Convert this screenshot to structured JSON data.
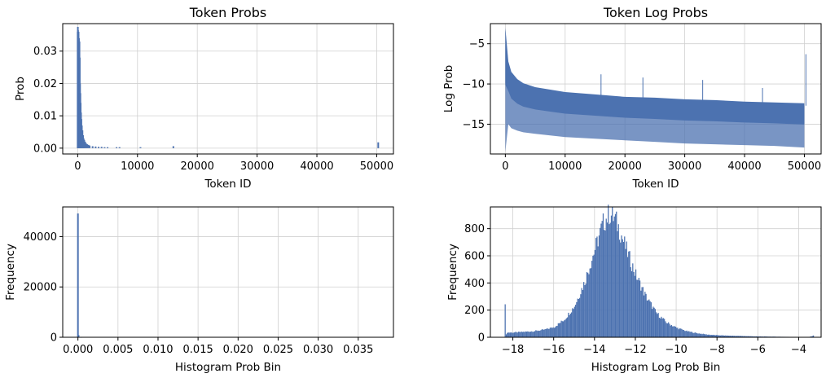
{
  "colors": {
    "series": "#4c72b0"
  },
  "chart_data": [
    {
      "id": "probs",
      "type": "bar",
      "title": "Token Probs",
      "xlabel": "Token ID",
      "ylabel": "Prob",
      "xlim": [
        -2500,
        52800
      ],
      "ylim": [
        -0.0018,
        0.0385
      ],
      "xticks": [
        0,
        10000,
        20000,
        30000,
        40000,
        50000
      ],
      "xtick_labels": [
        "0",
        "10000",
        "20000",
        "30000",
        "40000",
        "50000"
      ],
      "yticks": [
        0,
        0.01,
        0.02,
        0.03
      ],
      "ytick_labels": [
        "0.00",
        "0.01",
        "0.02",
        "0.03"
      ],
      "grid": true,
      "x": [
        0,
        30,
        60,
        90,
        120,
        150,
        180,
        220,
        260,
        300,
        350,
        400,
        450,
        500,
        560,
        620,
        700,
        800,
        900,
        1000,
        1100,
        1250,
        1400,
        1600,
        1800,
        2000,
        2500,
        3000,
        3500,
        4000,
        4500,
        5000,
        6500,
        7000,
        10500,
        16000,
        50256
      ],
      "y": [
        0.036,
        0.0375,
        0.0365,
        0.035,
        0.0355,
        0.036,
        0.033,
        0.034,
        0.031,
        0.033,
        0.028,
        0.02,
        0.017,
        0.014,
        0.011,
        0.009,
        0.007,
        0.0055,
        0.004,
        0.003,
        0.0025,
        0.002,
        0.0015,
        0.0012,
        0.001,
        0.0008,
        0.0006,
        0.0005,
        0.0004,
        0.0004,
        0.0003,
        0.0003,
        0.0003,
        0.0003,
        0.0003,
        0.0006,
        0.0018
      ]
    },
    {
      "id": "logprobs",
      "type": "line",
      "title": "Token Log Probs",
      "xlabel": "Token ID",
      "ylabel": "Log Prob",
      "xlim": [
        -2500,
        52800
      ],
      "ylim": [
        -18.7,
        -2.5
      ],
      "xticks": [
        0,
        10000,
        20000,
        30000,
        40000,
        50000
      ],
      "xtick_labels": [
        "0",
        "10000",
        "20000",
        "30000",
        "40000",
        "50000"
      ],
      "yticks": [
        -15,
        -10,
        -5
      ],
      "ytick_labels": [
        "−15",
        "−10",
        "−5"
      ],
      "grid": true,
      "x": [
        0,
        500,
        1000,
        2000,
        3000,
        5000,
        7500,
        10000,
        15000,
        20000,
        25000,
        30000,
        35000,
        40000,
        45000,
        50000
      ],
      "upper": [
        -3.3,
        -7.5,
        -8.8,
        -9.7,
        -10.2,
        -10.7,
        -11.0,
        -11.3,
        -11.6,
        -11.9,
        -12.0,
        -12.2,
        -12.3,
        -12.5,
        -12.6,
        -12.7
      ],
      "lower": [
        -18.4,
        -15.0,
        -15.5,
        -15.8,
        -16.0,
        -16.2,
        -16.4,
        -16.6,
        -16.8,
        -17.0,
        -17.2,
        -17.4,
        -17.5,
        -17.6,
        -17.7,
        -17.9
      ],
      "spikes": [
        {
          "x": 0,
          "y": -3.3
        },
        {
          "x": 16000,
          "y": -8.8
        },
        {
          "x": 23000,
          "y": -9.2
        },
        {
          "x": 33000,
          "y": -9.5
        },
        {
          "x": 43000,
          "y": -10.5
        },
        {
          "x": 50256,
          "y": -6.3
        }
      ]
    },
    {
      "id": "prob_hist",
      "type": "bar",
      "title": "",
      "xlabel": "Histogram Prob Bin",
      "ylabel": "Frequency",
      "xlim": [
        -0.0019,
        0.0394
      ],
      "ylim": [
        0,
        51800
      ],
      "xticks": [
        0,
        0.005,
        0.01,
        0.015,
        0.02,
        0.025,
        0.03,
        0.035
      ],
      "xtick_labels": [
        "0.000",
        "0.005",
        "0.010",
        "0.015",
        "0.020",
        "0.025",
        "0.030",
        "0.035"
      ],
      "yticks": [
        0,
        20000,
        40000
      ],
      "ytick_labels": [
        "0",
        "20000",
        "40000"
      ],
      "grid": true,
      "x": [
        0.0,
        7.5e-05,
        0.00015,
        0.000225,
        0.0003,
        0.0004
      ],
      "y": [
        49200,
        900,
        150,
        60,
        30,
        15
      ]
    },
    {
      "id": "logprob_hist",
      "type": "bar",
      "title": "",
      "xlabel": "Histogram Log Prob Bin",
      "ylabel": "Frequency",
      "xlim": [
        -19.1,
        -2.9
      ],
      "ylim": [
        0,
        960
      ],
      "xticks": [
        -18,
        -16,
        -14,
        -12,
        -10,
        -8,
        -6,
        -4
      ],
      "xtick_labels": [
        "−18",
        "−16",
        "−14",
        "−12",
        "−10",
        "−8",
        "−6",
        "−4"
      ],
      "yticks": [
        0,
        200,
        400,
        600,
        800
      ],
      "ytick_labels": [
        "0",
        "200",
        "400",
        "600",
        "800"
      ],
      "grid": true,
      "bin_start": -18.4,
      "bin_width": 0.05,
      "profile_x": [
        -18.4,
        -18.35,
        -18.3,
        -18.0,
        -17.5,
        -17.0,
        -16.5,
        -16.0,
        -15.5,
        -15.0,
        -14.5,
        -14.0,
        -13.6,
        -13.3,
        -13.0,
        -12.7,
        -12.4,
        -12.0,
        -11.5,
        -11.0,
        -10.5,
        -10.0,
        -9.5,
        -9.0,
        -8.5,
        -8.0,
        -7.5,
        -7.0,
        -6.5,
        -6.0,
        -5.5,
        -5.0,
        -4.5,
        -4.0,
        -3.5,
        -3.3
      ],
      "profile_y": [
        270,
        20,
        35,
        35,
        40,
        45,
        55,
        75,
        130,
        230,
        410,
        650,
        840,
        910,
        870,
        750,
        620,
        460,
        300,
        180,
        110,
        70,
        45,
        30,
        20,
        15,
        12,
        10,
        8,
        6,
        5,
        4,
        3,
        2,
        2,
        12
      ]
    }
  ]
}
